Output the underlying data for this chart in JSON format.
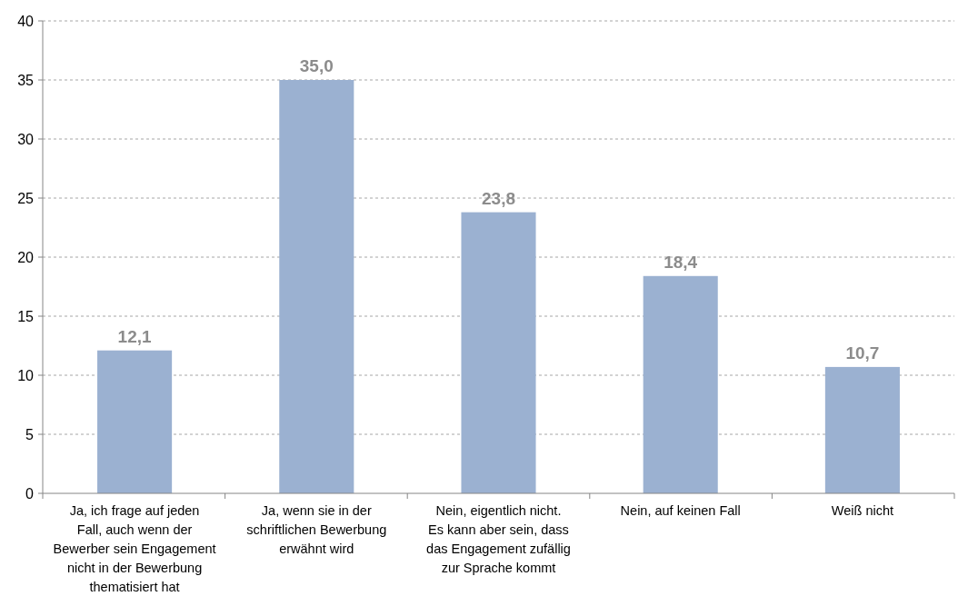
{
  "chart_data": {
    "type": "bar",
    "categories": [
      "Ja, ich frage auf jeden Fall, auch wenn der Bewerber sein Engagement nicht in der Bewerbung thematisiert hat",
      "Ja, wenn sie in der schriftlichen Bewerbung erwähnt wird",
      "Nein, eigentlich nicht. Es kann aber sein, dass das Engagement zufällig zur Sprache kommt",
      "Nein, auf keinen Fall",
      "Weiß nicht"
    ],
    "values": [
      12.1,
      35.0,
      23.8,
      18.4,
      10.7
    ],
    "value_labels": [
      "12,1",
      "35,0",
      "23,8",
      "18,4",
      "10,7"
    ],
    "color": "#9bb1d1",
    "ylim": [
      0,
      40
    ],
    "yticks": [
      0,
      5,
      10,
      15,
      20,
      25,
      30,
      35,
      40
    ],
    "grid": "y"
  }
}
